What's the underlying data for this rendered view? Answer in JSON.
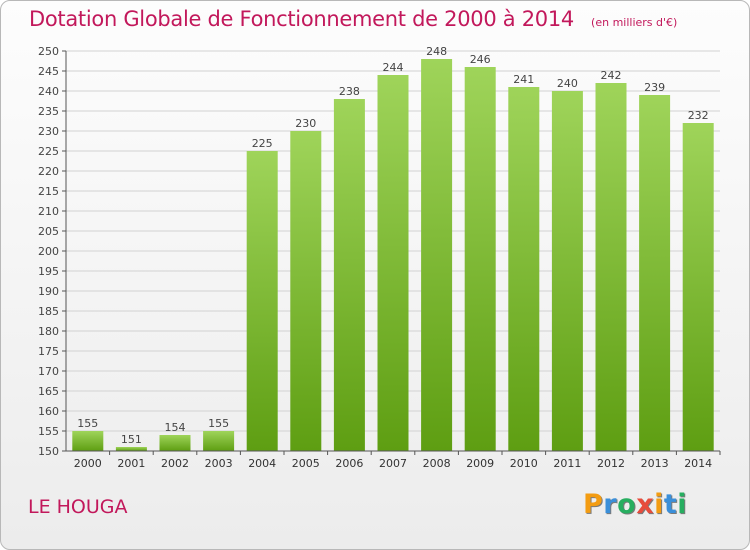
{
  "title": "Dotation Globale de Fonctionnement de 2000 à 2014",
  "unit": "(en milliers d'€)",
  "commune": "LE HOUGA",
  "logo": {
    "text": "Proxiti",
    "letter_colors": [
      "#f39c12",
      "#3b8fd9",
      "#27ae60",
      "#e74c3c",
      "#f39c12",
      "#3b8fd9",
      "#27ae60"
    ]
  },
  "colors": {
    "accent": "#c2185b",
    "bar_top": "#9fd45a",
    "bar_bottom": "#5e9e12"
  },
  "chart_data": {
    "type": "bar",
    "categories": [
      "2000",
      "2001",
      "2002",
      "2003",
      "2004",
      "2005",
      "2006",
      "2007",
      "2008",
      "2009",
      "2010",
      "2011",
      "2012",
      "2013",
      "2014"
    ],
    "values": [
      155,
      151,
      154,
      155,
      225,
      230,
      238,
      244,
      248,
      246,
      241,
      240,
      242,
      239,
      232
    ],
    "ylim": [
      150,
      250
    ],
    "yticks": [
      150,
      155,
      160,
      165,
      170,
      175,
      180,
      185,
      190,
      195,
      200,
      205,
      210,
      215,
      220,
      225,
      230,
      235,
      240,
      245,
      250
    ],
    "grid": true,
    "xlabel": "",
    "ylabel": ""
  }
}
